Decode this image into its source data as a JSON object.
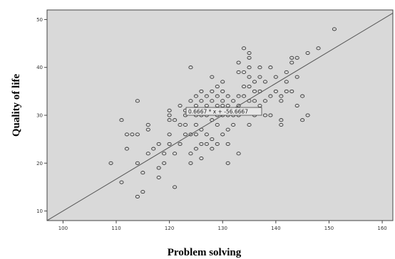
{
  "chart_data": {
    "type": "scatter",
    "xlabel": "Problem solving",
    "ylabel": "Quality of  life",
    "xlim": [
      97,
      162
    ],
    "ylim": [
      8,
      52
    ],
    "xticks": [
      "100",
      "110",
      "120",
      "130",
      "140",
      "150",
      "160"
    ],
    "yticks": [
      "10",
      "20",
      "30",
      "40",
      "50"
    ],
    "fit_line": {
      "slope": 0.6667,
      "intercept": -56.6667,
      "label": "0.6667 * x + -56.6667"
    },
    "grid": false,
    "legend": "none",
    "colors": {
      "plot_bg": "#d9d9d9",
      "marker": "#333333",
      "line": "#555555",
      "frame": "#444444"
    },
    "points": [
      [
        109,
        20
      ],
      [
        111,
        16
      ],
      [
        111,
        29
      ],
      [
        112,
        23
      ],
      [
        112,
        26
      ],
      [
        113,
        26
      ],
      [
        114,
        26
      ],
      [
        114,
        13
      ],
      [
        114,
        33
      ],
      [
        114,
        20
      ],
      [
        115,
        14
      ],
      [
        115,
        18
      ],
      [
        116,
        22
      ],
      [
        116,
        27
      ],
      [
        116,
        28
      ],
      [
        117,
        23
      ],
      [
        118,
        17
      ],
      [
        118,
        19
      ],
      [
        118,
        24
      ],
      [
        119,
        20
      ],
      [
        119,
        22
      ],
      [
        120,
        24
      ],
      [
        120,
        26
      ],
      [
        120,
        30
      ],
      [
        120,
        31
      ],
      [
        120,
        29
      ],
      [
        121,
        29
      ],
      [
        121,
        15
      ],
      [
        121,
        22
      ],
      [
        122,
        24
      ],
      [
        122,
        28
      ],
      [
        122,
        32
      ],
      [
        123,
        26
      ],
      [
        123,
        28
      ],
      [
        123,
        30
      ],
      [
        123,
        31
      ],
      [
        124,
        20
      ],
      [
        124,
        22
      ],
      [
        124,
        26
      ],
      [
        124,
        33
      ],
      [
        124,
        40
      ],
      [
        125,
        23
      ],
      [
        125,
        26
      ],
      [
        125,
        28
      ],
      [
        125,
        30
      ],
      [
        125,
        32
      ],
      [
        125,
        34
      ],
      [
        126,
        21
      ],
      [
        126,
        24
      ],
      [
        126,
        27
      ],
      [
        126,
        30
      ],
      [
        126,
        33
      ],
      [
        126,
        35
      ],
      [
        127,
        24
      ],
      [
        127,
        26
      ],
      [
        127,
        30
      ],
      [
        127,
        32
      ],
      [
        127,
        34
      ],
      [
        128,
        23
      ],
      [
        128,
        25
      ],
      [
        128,
        29
      ],
      [
        128,
        31
      ],
      [
        128,
        33
      ],
      [
        128,
        35
      ],
      [
        128,
        38
      ],
      [
        129,
        24
      ],
      [
        129,
        28
      ],
      [
        129,
        30
      ],
      [
        129,
        32
      ],
      [
        129,
        34
      ],
      [
        129,
        36
      ],
      [
        130,
        26
      ],
      [
        130,
        30
      ],
      [
        130,
        32
      ],
      [
        130,
        33
      ],
      [
        130,
        35
      ],
      [
        130,
        37
      ],
      [
        131,
        20
      ],
      [
        131,
        24
      ],
      [
        131,
        27
      ],
      [
        131,
        30
      ],
      [
        131,
        32
      ],
      [
        131,
        34
      ],
      [
        132,
        28
      ],
      [
        132,
        30
      ],
      [
        132,
        33
      ],
      [
        133,
        22
      ],
      [
        133,
        30
      ],
      [
        133,
        32
      ],
      [
        133,
        34
      ],
      [
        133,
        39
      ],
      [
        133,
        41
      ],
      [
        134,
        31
      ],
      [
        134,
        34
      ],
      [
        134,
        36
      ],
      [
        134,
        39
      ],
      [
        134,
        44
      ],
      [
        135,
        28
      ],
      [
        135,
        31
      ],
      [
        135,
        33
      ],
      [
        135,
        36
      ],
      [
        135,
        38
      ],
      [
        135,
        40
      ],
      [
        135,
        42
      ],
      [
        135,
        43
      ],
      [
        136,
        30
      ],
      [
        136,
        33
      ],
      [
        136,
        35
      ],
      [
        136,
        37
      ],
      [
        137,
        32
      ],
      [
        137,
        35
      ],
      [
        137,
        38
      ],
      [
        137,
        40
      ],
      [
        138,
        30
      ],
      [
        138,
        33
      ],
      [
        138,
        37
      ],
      [
        139,
        30
      ],
      [
        139,
        34
      ],
      [
        139,
        40
      ],
      [
        140,
        35
      ],
      [
        140,
        38
      ],
      [
        141,
        28
      ],
      [
        141,
        29
      ],
      [
        141,
        33
      ],
      [
        141,
        34
      ],
      [
        142,
        35
      ],
      [
        142,
        37
      ],
      [
        142,
        39
      ],
      [
        143,
        35
      ],
      [
        143,
        41
      ],
      [
        143,
        42
      ],
      [
        144,
        32
      ],
      [
        144,
        38
      ],
      [
        144,
        42
      ],
      [
        145,
        29
      ],
      [
        145,
        34
      ],
      [
        146,
        43
      ],
      [
        146,
        30
      ],
      [
        148,
        44
      ],
      [
        151,
        48
      ]
    ]
  }
}
